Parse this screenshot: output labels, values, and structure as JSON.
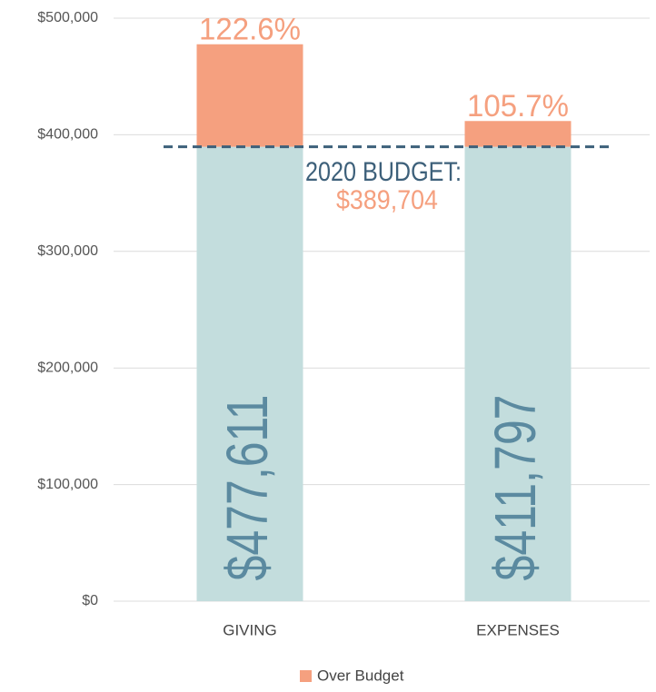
{
  "chart_data": {
    "type": "stacked_bar",
    "categories": [
      "GIVING",
      "EXPENSES"
    ],
    "series": [
      {
        "color": "#c3dddd",
        "values": [
          389704,
          389704
        ]
      },
      {
        "name": "Over Budget",
        "color": "#f5a07f",
        "values": [
          87907,
          22093
        ]
      }
    ],
    "bar_labels": [
      "$477,611",
      "$411,797"
    ],
    "percent_labels": [
      "122.6%",
      "105.7%"
    ],
    "budget_line": {
      "label": "2020 BUDGET:",
      "value": 389704,
      "value_label": "$389,704",
      "color": "#3d607a"
    },
    "ylim": [
      0,
      500000
    ],
    "yticks": [
      {
        "value": 0,
        "label": "$0"
      },
      {
        "value": 100000,
        "label": "$100,000"
      },
      {
        "value": 200000,
        "label": "$200,000"
      },
      {
        "value": 300000,
        "label": "$300,000"
      },
      {
        "value": 400000,
        "label": "$400,000"
      },
      {
        "value": 500000,
        "label": "$500,000"
      }
    ],
    "grid": true,
    "legend": "bottom"
  }
}
